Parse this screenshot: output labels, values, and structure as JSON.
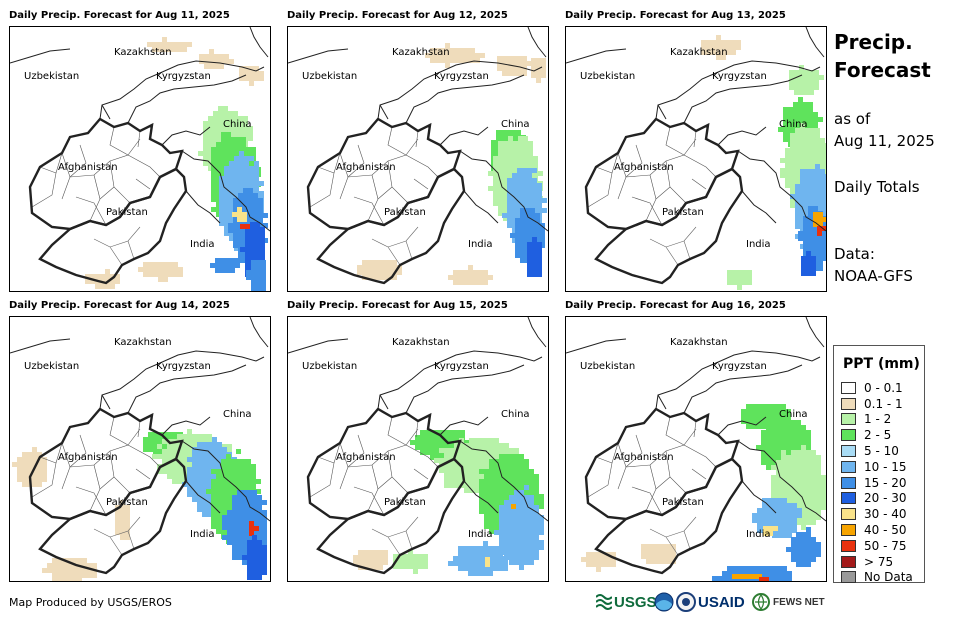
{
  "panels": [
    {
      "title": "Daily Precip. Forecast for Aug 11, 2025"
    },
    {
      "title": "Daily Precip. Forecast for Aug 12, 2025"
    },
    {
      "title": "Daily Precip. Forecast for Aug 13, 2025"
    },
    {
      "title": "Daily Precip. Forecast for Aug 14, 2025"
    },
    {
      "title": "Daily Precip. Forecast for Aug 15, 2025"
    },
    {
      "title": "Daily Precip. Forecast for Aug 16, 2025"
    }
  ],
  "map_labels": {
    "kazakhstan": "Kazakhstan",
    "uzbekistan": "Uzbekistan",
    "kyrgyzstan": "Kyrgyzstan",
    "china": "China",
    "afghanistan": "Afghanistan",
    "pakistan": "Pakistan",
    "india": "India"
  },
  "side": {
    "title_line1": "Precip.",
    "title_line2": "Forecast",
    "as_of": "as of",
    "date": "Aug 11, 2025",
    "daily_totals": "Daily Totals",
    "data_label": "Data:",
    "data_source": "NOAA-GFS"
  },
  "legend": {
    "title": "PPT (mm)",
    "items": [
      {
        "label": "0 - 0.1",
        "color": "#ffffff"
      },
      {
        "label": "0.1 - 1",
        "color": "#efdcbb"
      },
      {
        "label": "1 - 2",
        "color": "#b7f2a8"
      },
      {
        "label": "2 - 5",
        "color": "#5fe35c"
      },
      {
        "label": "5 - 10",
        "color": "#a9dcf5"
      },
      {
        "label": "10 - 15",
        "color": "#6fb5ef"
      },
      {
        "label": "15 - 20",
        "color": "#3f8fe6"
      },
      {
        "label": "20 - 30",
        "color": "#1f5fe0"
      },
      {
        "label": "30 - 40",
        "color": "#f9e38a"
      },
      {
        "label": "40 - 50",
        "color": "#f7a400"
      },
      {
        "label": "50 - 75",
        "color": "#e8310e"
      },
      {
        "label": "> 75",
        "color": "#a31a1a"
      },
      {
        "label": "No Data",
        "color": "#999999"
      }
    ]
  },
  "footer": {
    "credit": "Map Produced by USGS/EROS",
    "logo_usgs": "USGS",
    "logo_usaid": "USAID",
    "logo_fews": "FEWS NET"
  }
}
